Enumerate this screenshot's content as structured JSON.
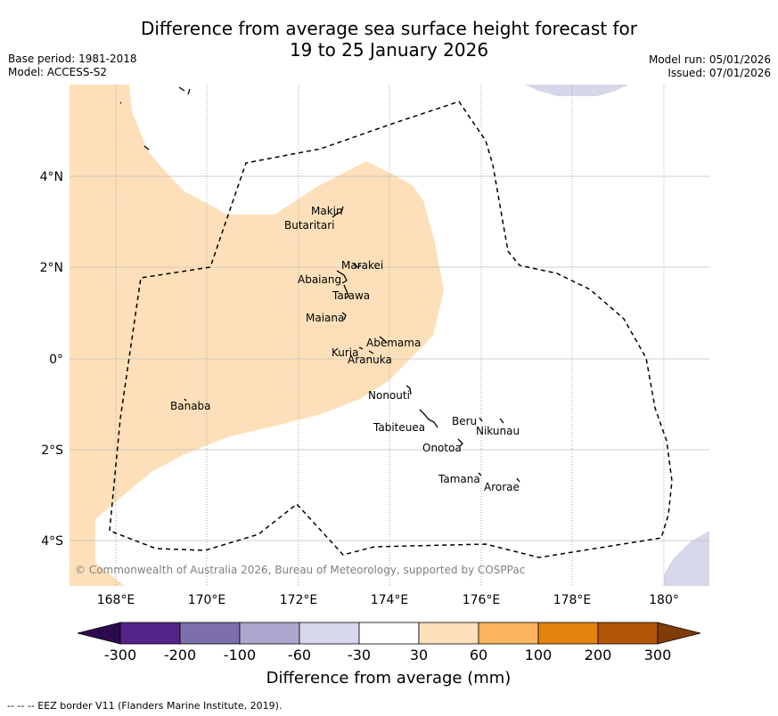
{
  "title_line1": "Difference from average sea surface height forecast for",
  "title_line2": "19 to 25 January 2026",
  "base_period": "Base period: 1981-2018",
  "model": "Model: ACCESS-S2",
  "model_run": "Model run: 05/01/2026",
  "issued": "Issued: 07/01/2026",
  "copyright": "© Commonwealth of Australia 2026, Bureau of Meteorology, supported by COSPPac",
  "footnote": "--  --  -- EEZ border V11 (Flanders Marine Institute, 2019).",
  "axes": {
    "lon_labels": [
      "168°E",
      "170°E",
      "172°E",
      "174°E",
      "176°E",
      "178°E",
      "180°"
    ],
    "lat_labels": [
      "4°N",
      "2°N",
      "0°",
      "2°S",
      "4°S"
    ]
  },
  "islands": [
    {
      "name": "Makin"
    },
    {
      "name": "Butaritari"
    },
    {
      "name": "Marakei"
    },
    {
      "name": "Abaiang"
    },
    {
      "name": "Tarawa"
    },
    {
      "name": "Maiana"
    },
    {
      "name": "Abemama"
    },
    {
      "name": "Kuria"
    },
    {
      "name": "Aranuka"
    },
    {
      "name": "Banaba"
    },
    {
      "name": "Nonouti"
    },
    {
      "name": "Tabiteuea"
    },
    {
      "name": "Beru"
    },
    {
      "name": "Nikunau"
    },
    {
      "name": "Onotoa"
    },
    {
      "name": "Tamana"
    },
    {
      "name": "Arorae"
    }
  ],
  "colorbar": {
    "label": "Difference from average (mm)",
    "tick_labels": [
      "-300",
      "-200",
      "-100",
      "-60",
      "-30",
      "30",
      "60",
      "100",
      "200",
      "300"
    ],
    "colors": [
      "#2d0a4e",
      "#54238a",
      "#7d6fab",
      "#ada7cf",
      "#d7d7ea",
      "#ffffff",
      "#fde0b9",
      "#fbb560",
      "#e38310",
      "#b25708",
      "#7f3b08"
    ]
  },
  "colors": {
    "land_fill": "#fde0b9",
    "negative_fill": "#d7d7ea",
    "grid": "#bfbfbf"
  }
}
